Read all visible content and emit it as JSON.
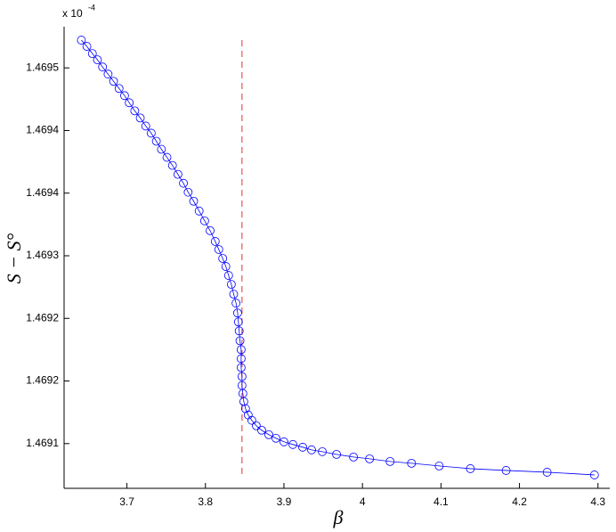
{
  "chart_data": {
    "type": "line",
    "multiplier": "x 10",
    "exponent": "-4",
    "xlabel": "β",
    "ylabel": "S − S°",
    "color": "#0000ff",
    "marker": "circle",
    "xlim": [
      3.62,
      4.315
    ],
    "ylim": [
      1.46904,
      1.469556
    ],
    "xticks": [
      3.7,
      3.8,
      3.9,
      {
        "value": 4.0,
        "label": "4"
      },
      4.1,
      4.2,
      4.3
    ],
    "yticks": [
      {
        "value": 1.46951,
        "label": "1.4695"
      },
      {
        "value": 1.46944,
        "label": "1.4694"
      },
      {
        "value": 1.46937,
        "label": "1.4694"
      },
      {
        "value": 1.4693,
        "label": "1.4693"
      },
      {
        "value": 1.46923,
        "label": "1.4692"
      },
      {
        "value": 1.46916,
        "label": "1.4692"
      },
      {
        "value": 1.46909,
        "label": "1.4691"
      }
    ],
    "vline": {
      "x": 3.8466,
      "y": [
        1.469541,
        1.469055
      ],
      "color": "#e03030"
    },
    "x": [
      3.642,
      3.649,
      3.656,
      3.6625,
      3.669,
      3.676,
      3.683,
      3.69,
      3.697,
      3.703,
      3.71,
      3.717,
      3.724,
      3.731,
      3.7375,
      3.744,
      3.751,
      3.758,
      3.765,
      3.772,
      3.778,
      3.785,
      3.792,
      3.799,
      3.806,
      3.8125,
      3.817,
      3.822,
      3.826,
      3.8295,
      3.833,
      3.836,
      3.839,
      3.841,
      3.842,
      3.843,
      3.844,
      3.8455,
      3.8455,
      3.8455,
      3.8466,
      3.8466,
      3.8477,
      3.8489,
      3.8511,
      3.8545,
      3.8591,
      3.8648,
      3.8716,
      3.8807,
      3.8898,
      3.9,
      3.9114,
      3.9239,
      3.9352,
      3.9489,
      3.967,
      3.9886,
      4.0091,
      4.0352,
      4.0625,
      4.0977,
      4.1375,
      4.183,
      4.2352,
      4.2955
    ],
    "values": [
      1.469541,
      1.469534,
      1.469526,
      1.469519,
      1.469511,
      1.469503,
      1.469495,
      1.469487,
      1.469479,
      1.469471,
      1.469462,
      1.469454,
      1.469445,
      1.469437,
      1.469428,
      1.469419,
      1.46941,
      1.469401,
      1.469391,
      1.469381,
      1.469371,
      1.469361,
      1.46935,
      1.469339,
      1.469328,
      1.469316,
      1.469307,
      1.469297,
      1.469288,
      1.469278,
      1.469268,
      1.469257,
      1.469247,
      1.469236,
      1.469226,
      1.469216,
      1.469205,
      1.469195,
      1.469185,
      1.469175,
      1.469165,
      1.469155,
      1.469146,
      1.469137,
      1.469129,
      1.469122,
      1.469116,
      1.46911,
      1.469105,
      1.4691,
      1.469096,
      1.469092,
      1.469089,
      1.469086,
      1.469083,
      1.469081,
      1.469078,
      1.469075,
      1.469073,
      1.46907,
      1.469068,
      1.469065,
      1.469062,
      1.46906,
      1.469058,
      1.469055
    ]
  }
}
